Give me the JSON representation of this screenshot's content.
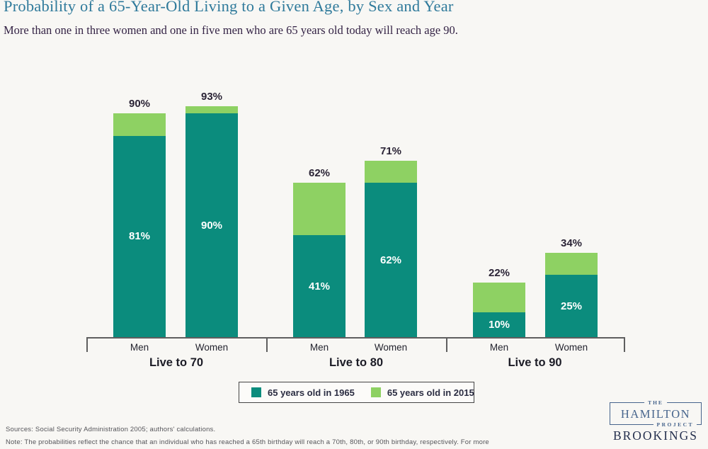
{
  "header": {
    "title": "Probability of a 65-Year-Old Living to a Given Age, by Sex and Year",
    "subtitle": "More than one in three women and one in five men who are 65 years old today will reach age 90."
  },
  "chart_data": {
    "type": "bar",
    "title": "Probability of a 65-Year-Old Living to a Given Age, by Sex and Year",
    "unit": "%",
    "ylim": [
      0,
      100
    ],
    "grid": false,
    "legend_position": "bottom",
    "series": [
      {
        "name": "65 years old in 1965",
        "color": "#0b8c7d"
      },
      {
        "name": "65 years old in 2015",
        "color": "#8ed163"
      }
    ],
    "groups": [
      {
        "label": "Live to 70",
        "bars": [
          {
            "category": "Men",
            "value_1965": 81,
            "value_2015": 90
          },
          {
            "category": "Women",
            "value_1965": 90,
            "value_2015": 93
          }
        ]
      },
      {
        "label": "Live to 80",
        "bars": [
          {
            "category": "Men",
            "value_1965": 41,
            "value_2015": 62
          },
          {
            "category": "Women",
            "value_1965": 62,
            "value_2015": 71
          }
        ]
      },
      {
        "label": "Live to 90",
        "bars": [
          {
            "category": "Men",
            "value_1965": 10,
            "value_2015": 22
          },
          {
            "category": "Women",
            "value_1965": 25,
            "value_2015": 34
          }
        ]
      }
    ]
  },
  "footer": {
    "sources": "Sources: Social Security Administration 2005; authors' calculations.",
    "note": "Note: The probabilities reflect the chance that an individual who has reached a 65th birthday will reach a 70th, 80th, or 90th birthday, respectively. For more"
  },
  "branding": {
    "the": "THE",
    "hamilton": "HAMILTON",
    "project": "PROJECT",
    "brookings": "BROOKINGS"
  },
  "colors": {
    "teal": "#0b8c7d",
    "green": "#8ed163",
    "title": "#2f7a9b",
    "subtitle": "#342345",
    "axis": "#5f5f5f",
    "logo_blue": "#46648c",
    "brookings_navy": "#25304e"
  }
}
